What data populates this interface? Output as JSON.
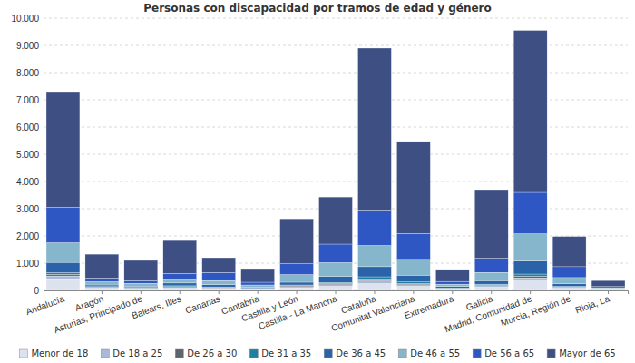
{
  "chart_data": {
    "type": "bar",
    "stacked": true,
    "title": "Personas con discapacidad por tramos de edad y género",
    "categories": [
      "Andalucía",
      "Aragón",
      "Asturias, Principado de",
      "Balears, Illes",
      "Canarias",
      "Cantabria",
      "Castilla y León",
      "Castilla - La Mancha",
      "Cataluña",
      "Comunitat Valenciana",
      "Extremadura",
      "Galicia",
      "Madrid, Comunidad de",
      "Murcia, Región de",
      "Rioja, La"
    ],
    "series": [
      {
        "name": "Menor de 18",
        "color": "#dde2ef",
        "values": [
          430,
          70,
          50,
          80,
          60,
          40,
          100,
          150,
          250,
          150,
          50,
          120,
          380,
          80,
          20
        ]
      },
      {
        "name": "De 18 a 25",
        "color": "#a8bad8",
        "values": [
          100,
          30,
          20,
          30,
          30,
          20,
          40,
          60,
          100,
          60,
          20,
          50,
          80,
          30,
          10
        ]
      },
      {
        "name": "De 26 a 30",
        "color": "#5e636e",
        "values": [
          60,
          20,
          20,
          30,
          20,
          10,
          30,
          40,
          70,
          50,
          10,
          30,
          60,
          20,
          10
        ]
      },
      {
        "name": "De 31 a 35",
        "color": "#1f80a1",
        "values": [
          60,
          20,
          20,
          30,
          20,
          10,
          30,
          40,
          80,
          50,
          10,
          30,
          80,
          20,
          10
        ]
      },
      {
        "name": "De 36 a 45",
        "color": "#2a63a8",
        "values": [
          380,
          60,
          50,
          100,
          80,
          40,
          100,
          230,
          370,
          250,
          50,
          130,
          480,
          100,
          20
        ]
      },
      {
        "name": "De 46 a 55",
        "color": "#86b6cb",
        "values": [
          720,
          120,
          100,
          150,
          150,
          80,
          280,
          500,
          780,
          580,
          90,
          300,
          1000,
          220,
          30
        ]
      },
      {
        "name": "De 56 a 65",
        "color": "#2f57c3",
        "values": [
          1300,
          130,
          100,
          200,
          300,
          100,
          400,
          680,
          1300,
          950,
          100,
          520,
          1520,
          400,
          40
        ]
      },
      {
        "name": "Mayor de 65",
        "color": "#3e4f84",
        "values": [
          4250,
          880,
          740,
          1210,
          540,
          500,
          1650,
          1730,
          5950,
          3380,
          440,
          2520,
          5950,
          1110,
          220
        ]
      }
    ],
    "ylim": [
      0,
      10000
    ],
    "yticks": [
      0,
      {
        "value": 1000,
        "label": "1.000"
      },
      {
        "value": 2000,
        "label": "2.000"
      },
      {
        "value": 3000,
        "label": "3.000"
      },
      {
        "value": 4000,
        "label": "4.000"
      },
      {
        "value": 5000,
        "label": "5.000"
      },
      {
        "value": 6000,
        "label": "6.000"
      },
      {
        "value": 7000,
        "label": "7.000"
      },
      {
        "value": 8000,
        "label": "8.000"
      },
      {
        "value": 9000,
        "label": "9.000"
      },
      {
        "value": 10000,
        "label": "10.000"
      }
    ],
    "grid": true,
    "legend": "bottom"
  }
}
